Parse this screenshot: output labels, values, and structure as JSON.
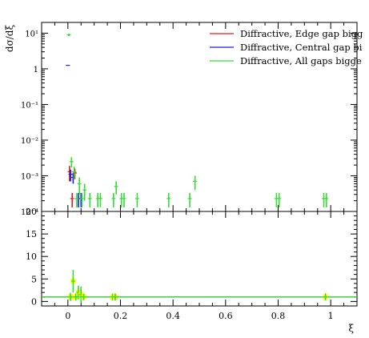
{
  "chart_data": [
    {
      "type": "scatter",
      "title": "",
      "ylabel": "dσ/dξ",
      "xlabel": "ξ",
      "ylim": [
        0.0001,
        20
      ],
      "log_y": true,
      "xlim": [
        -0.1,
        1.1
      ],
      "grid": false,
      "legend": "top-right",
      "y_tick_labels": [
        "10⁻⁴",
        "10⁻³",
        "10⁻²",
        "10⁻¹",
        "1",
        "10¹"
      ],
      "series": [
        {
          "name": "Diffractive, Edge gap bigg",
          "color": "#e41a1c",
          "points": [
            {
              "x": 0.01,
              "y": 0.0013,
              "err": 0.0006
            },
            {
              "x": 0.02,
              "y": 0.00023,
              "err": 0.0001
            },
            {
              "x": 0.03,
              "y": 0.0012,
              "err": 0.0004
            }
          ]
        },
        {
          "name": "Diffractive, Central gap bi",
          "color": "#1a1ae6",
          "points": [
            {
              "x": 0.0,
              "y": 1.25,
              "err": 0.0
            },
            {
              "x": 0.01,
              "y": 0.0011,
              "err": 0.0004
            },
            {
              "x": 0.02,
              "y": 0.0009,
              "err": 0.0003
            },
            {
              "x": 0.04,
              "y": 0.00023,
              "err": 0.0001
            },
            {
              "x": 0.05,
              "y": 0.00023,
              "err": 0.0001
            }
          ]
        },
        {
          "name": "Diffractive, All gaps bigge",
          "color": "#33dd33",
          "points": [
            {
              "x": 0.0,
              "y": 9.0,
              "err": 0.7
            },
            {
              "x": 0.01,
              "y": 0.0025,
              "err": 0.0008
            },
            {
              "x": 0.02,
              "y": 0.0013,
              "err": 0.0005
            },
            {
              "x": 0.03,
              "y": 0.00023,
              "err": 0.0001
            },
            {
              "x": 0.04,
              "y": 0.0006,
              "err": 0.0003
            },
            {
              "x": 0.05,
              "y": 0.00023,
              "err": 0.0001
            },
            {
              "x": 0.06,
              "y": 0.0004,
              "err": 0.0002
            },
            {
              "x": 0.08,
              "y": 0.00023,
              "err": 0.0001
            },
            {
              "x": 0.11,
              "y": 0.00023,
              "err": 0.0001
            },
            {
              "x": 0.12,
              "y": 0.00023,
              "err": 0.0001
            },
            {
              "x": 0.17,
              "y": 0.00023,
              "err": 0.0001
            },
            {
              "x": 0.18,
              "y": 0.0005,
              "err": 0.0002
            },
            {
              "x": 0.2,
              "y": 0.00023,
              "err": 0.0001
            },
            {
              "x": 0.21,
              "y": 0.00023,
              "err": 0.0001
            },
            {
              "x": 0.26,
              "y": 0.00023,
              "err": 0.0001
            },
            {
              "x": 0.38,
              "y": 0.00023,
              "err": 0.0001
            },
            {
              "x": 0.46,
              "y": 0.00023,
              "err": 0.0001
            },
            {
              "x": 0.48,
              "y": 0.0007,
              "err": 0.0003
            },
            {
              "x": 0.79,
              "y": 0.00023,
              "err": 0.0001
            },
            {
              "x": 0.8,
              "y": 0.00023,
              "err": 0.0001
            },
            {
              "x": 0.97,
              "y": 0.00023,
              "err": 0.0001
            },
            {
              "x": 0.98,
              "y": 0.00023,
              "err": 0.0001
            }
          ]
        }
      ]
    },
    {
      "type": "scatter",
      "title": "",
      "xlabel": "ξ",
      "ylabel": "",
      "ylim": [
        -1,
        20
      ],
      "xlim": [
        -0.1,
        1.1
      ],
      "y_ticks": [
        0,
        5,
        10,
        15,
        20
      ],
      "x_ticks": [
        0,
        0.2,
        0.4,
        0.6,
        0.8,
        1
      ],
      "x_tick_labels": [
        "0",
        "0.2",
        "0.4",
        "0.6",
        "0.8",
        "1"
      ],
      "reference_line": 1.0,
      "band_color": "#ffff00",
      "points": [
        {
          "x": 0.01,
          "y": 1.0,
          "err": 0.9
        },
        {
          "x": 0.02,
          "y": 4.5,
          "err": 2.5
        },
        {
          "x": 0.03,
          "y": 1.0,
          "err": 0.8
        },
        {
          "x": 0.04,
          "y": 2.0,
          "err": 1.5
        },
        {
          "x": 0.05,
          "y": 1.5,
          "err": 1.8
        },
        {
          "x": 0.06,
          "y": 1.0,
          "err": 0.7
        },
        {
          "x": 0.17,
          "y": 1.0,
          "err": 0.8
        },
        {
          "x": 0.18,
          "y": 1.0,
          "err": 0.8
        },
        {
          "x": 0.98,
          "y": 1.0,
          "err": 0.8
        }
      ]
    }
  ]
}
